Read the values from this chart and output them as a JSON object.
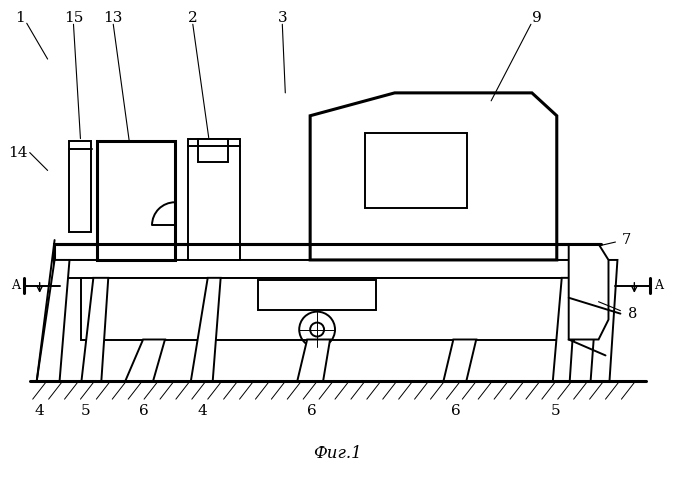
{
  "title": "Фиг.1",
  "bg_color": "#ffffff",
  "line_color": "#000000",
  "fig_width": 6.75,
  "fig_height": 5.0,
  "dpi": 100
}
